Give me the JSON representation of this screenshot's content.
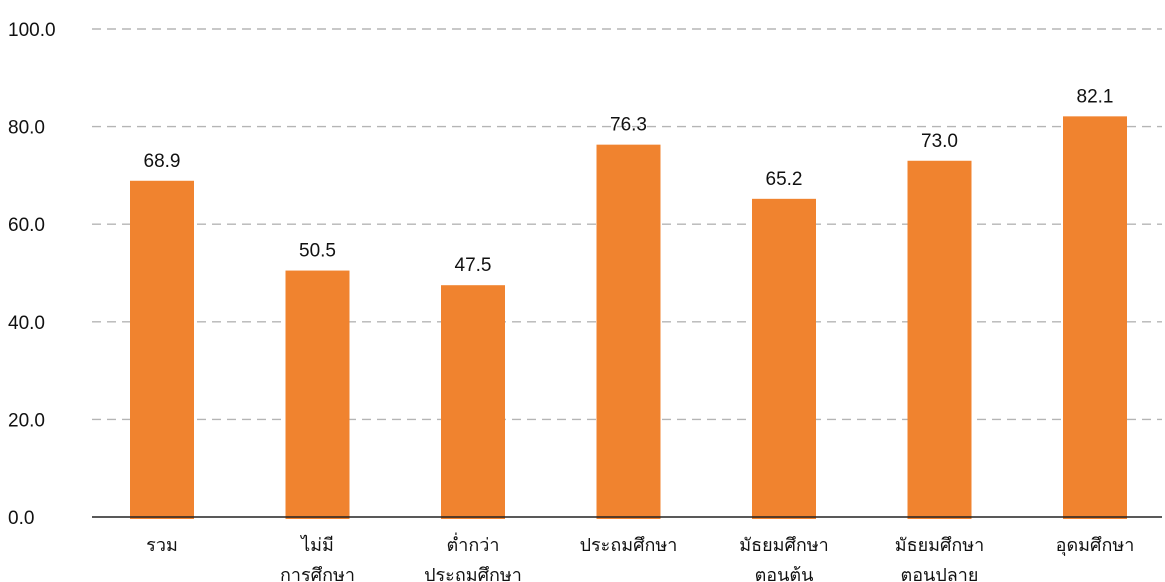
{
  "chart_data": {
    "type": "bar",
    "title": "",
    "xlabel": "",
    "ylabel": "",
    "categories": [
      [
        "รวม"
      ],
      [
        "ไม่มี",
        "การศึกษา"
      ],
      [
        "ต่ำกว่า",
        "ประถมศึกษา"
      ],
      [
        "ประถมศึกษา"
      ],
      [
        "มัธยมศึกษา",
        "ตอนต้น"
      ],
      [
        "มัธยมศึกษา",
        "ตอนปลาย"
      ],
      [
        "อุดมศึกษา"
      ]
    ],
    "values": [
      68.9,
      50.5,
      47.5,
      76.3,
      65.2,
      73.0,
      82.1
    ],
    "value_labels": [
      "68.9",
      "50.5",
      "47.5",
      "76.3",
      "65.2",
      "73.0",
      "82.1"
    ],
    "ylim": [
      0,
      100
    ],
    "yticks": [
      0,
      20,
      40,
      60,
      80,
      100
    ],
    "ytick_labels": [
      "0.0",
      "20.0",
      "40.0",
      "60.0",
      "80.0",
      "100.0"
    ],
    "grid": true,
    "legend": "none",
    "bar_color": "#F0832F"
  }
}
